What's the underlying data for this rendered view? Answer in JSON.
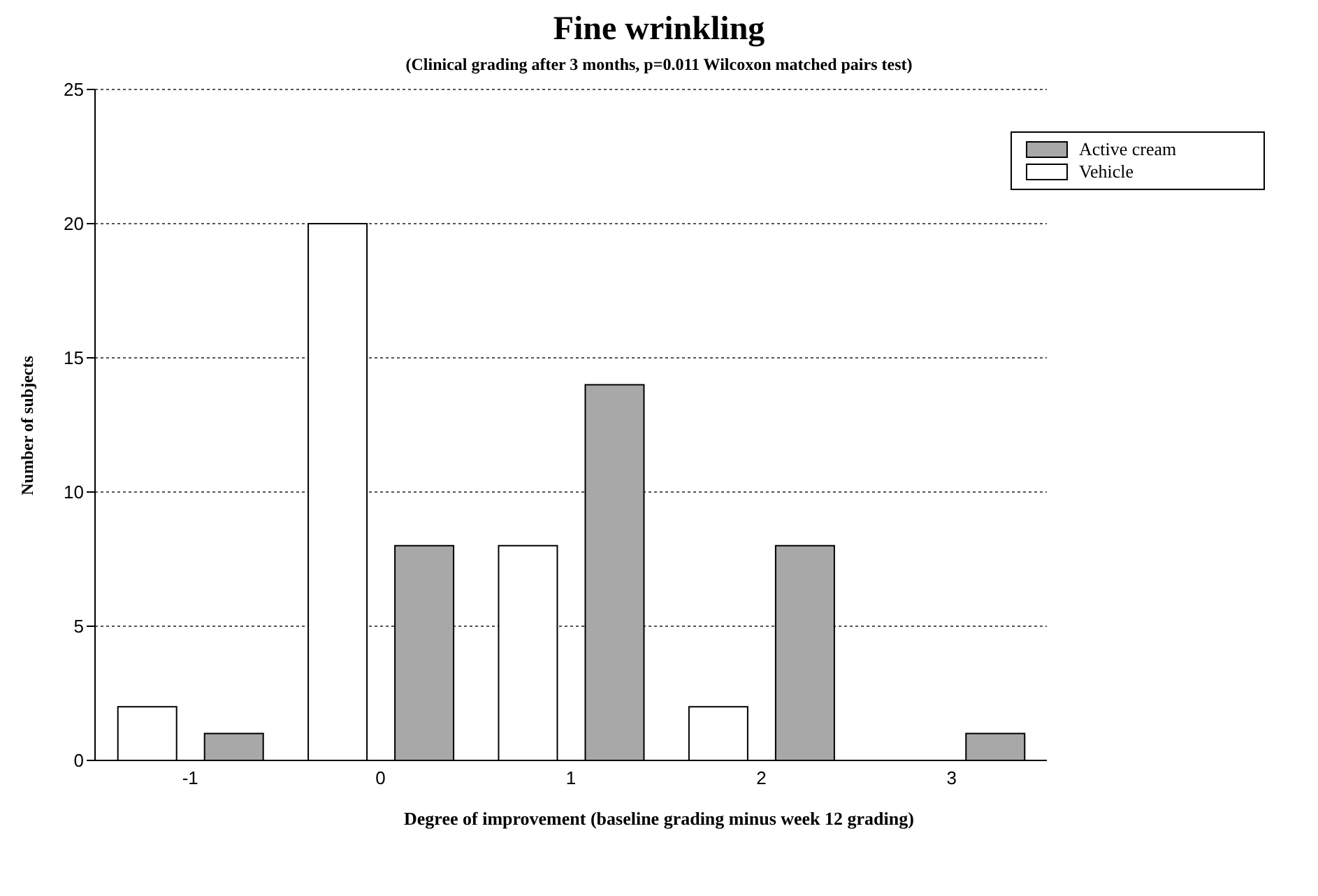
{
  "chart_data": {
    "type": "bar",
    "title": "Fine wrinkling",
    "subtitle": "(Clinical grading after 3 months, p=0.011  Wilcoxon matched pairs test)",
    "xlabel": "Degree of improvement (baseline grading minus week 12 grading)",
    "ylabel": "Number of subjects",
    "categories": [
      "-1",
      "0",
      "1",
      "2",
      "3"
    ],
    "series": [
      {
        "name": "Vehicle",
        "color": "#ffffff",
        "values": [
          2,
          20,
          8,
          2,
          0
        ]
      },
      {
        "name": "Active cream",
        "color": "#a8a8a8",
        "values": [
          1,
          8,
          14,
          8,
          1
        ]
      }
    ],
    "ylim": [
      0,
      25
    ],
    "yticks": [
      0,
      5,
      10,
      15,
      20,
      25
    ],
    "grid": "y",
    "legend": "top right"
  }
}
